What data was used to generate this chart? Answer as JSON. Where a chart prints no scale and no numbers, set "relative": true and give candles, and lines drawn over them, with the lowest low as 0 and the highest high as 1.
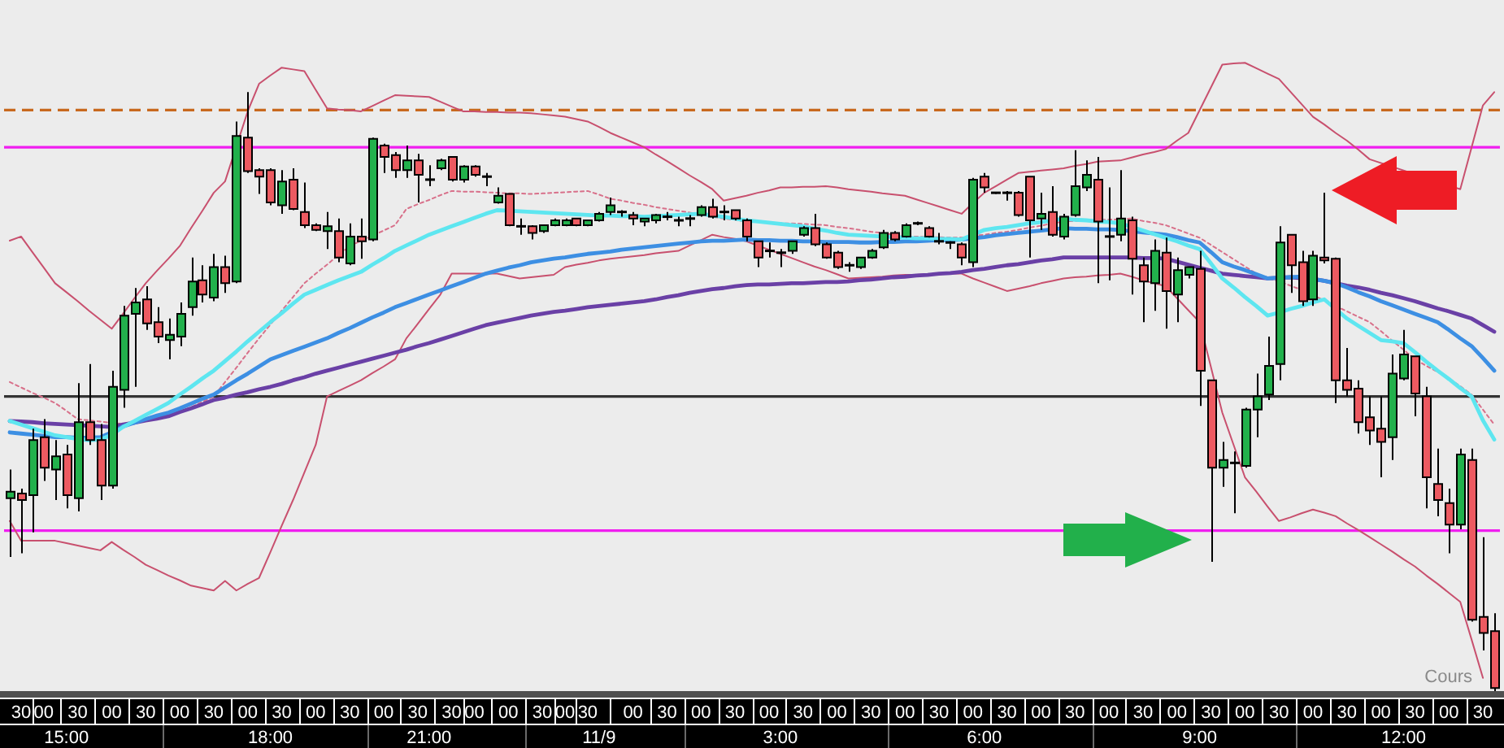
{
  "chart_data": {
    "type": "candlestick",
    "relative": true,
    "marker": "none",
    "categories": [
      null,
      "30",
      null,
      "00",
      null,
      "15:00",
      "30",
      null,
      null,
      "00",
      null,
      null,
      "30",
      null,
      null,
      "00",
      null,
      null,
      "30",
      null,
      null,
      "00",
      null,
      "18:00",
      "30",
      null,
      null,
      "00",
      null,
      null,
      "30",
      null,
      null,
      "00",
      null,
      null,
      "30",
      "21:00",
      null,
      "30",
      null,
      "00",
      null,
      null,
      "00",
      null,
      null,
      "30",
      null,
      "00",
      null,
      "30",
      "11/9",
      null,
      null,
      "00",
      null,
      null,
      "30",
      null,
      null,
      "00",
      null,
      null,
      "30",
      null,
      null,
      "00",
      "3:00",
      null,
      "30",
      null,
      null,
      "00",
      null,
      null,
      "30",
      null,
      null,
      "00",
      null,
      null,
      "30",
      null,
      null,
      "00",
      "6:00",
      null,
      "30",
      null,
      null,
      "00",
      null,
      null,
      "30",
      null,
      null,
      "00",
      null,
      null,
      "30",
      null,
      null,
      "00",
      null,
      "9:00",
      "30",
      null,
      null,
      "00",
      null,
      null,
      "30",
      null,
      null,
      "00",
      null,
      null,
      "30",
      null,
      null,
      "00",
      null,
      "12:00",
      "30",
      null,
      null,
      "00",
      null,
      null,
      "30",
      null
    ],
    "ohlc": [
      [
        0.322,
        0.37,
        0.224,
        0.333
      ],
      [
        0.33,
        0.338,
        0.23,
        0.319
      ],
      [
        0.327,
        0.438,
        0.265,
        0.419
      ],
      [
        0.424,
        0.454,
        0.351,
        0.373
      ],
      [
        0.37,
        0.419,
        0.319,
        0.392
      ],
      [
        0.395,
        0.411,
        0.305,
        0.327
      ],
      [
        0.322,
        0.514,
        0.3,
        0.449
      ],
      [
        0.449,
        0.546,
        0.411,
        0.419
      ],
      [
        0.419,
        0.446,
        0.319,
        0.343
      ],
      [
        0.343,
        0.535,
        0.338,
        0.508
      ],
      [
        0.503,
        0.643,
        0.473,
        0.627
      ],
      [
        0.63,
        0.673,
        0.508,
        0.649
      ],
      [
        0.654,
        0.676,
        0.603,
        0.614
      ],
      [
        0.616,
        0.641,
        0.581,
        0.592
      ],
      [
        0.586,
        0.622,
        0.554,
        0.595
      ],
      [
        0.592,
        0.649,
        0.576,
        0.63
      ],
      [
        0.641,
        0.724,
        0.627,
        0.684
      ],
      [
        0.686,
        0.711,
        0.649,
        0.662
      ],
      [
        0.657,
        0.73,
        0.651,
        0.708
      ],
      [
        0.708,
        0.727,
        0.665,
        0.681
      ],
      [
        0.684,
        0.951,
        0.681,
        0.927
      ],
      [
        0.924,
        1.0,
        0.865,
        0.868
      ],
      [
        0.87,
        0.873,
        0.83,
        0.859
      ],
      [
        0.87,
        0.873,
        0.811,
        0.816
      ],
      [
        0.811,
        0.87,
        0.797,
        0.851
      ],
      [
        0.854,
        0.873,
        0.803,
        0.805
      ],
      [
        0.8,
        0.849,
        0.773,
        0.778
      ],
      [
        0.778,
        0.781,
        0.768,
        0.77
      ],
      [
        0.768,
        0.8,
        0.738,
        0.776
      ],
      [
        0.768,
        0.789,
        0.716,
        0.724
      ],
      [
        0.714,
        0.781,
        0.711,
        0.759
      ],
      [
        0.759,
        0.789,
        0.722,
        0.751
      ],
      [
        0.754,
        0.924,
        0.751,
        0.922
      ],
      [
        0.911,
        0.914,
        0.865,
        0.892
      ],
      [
        0.895,
        0.9,
        0.857,
        0.87
      ],
      [
        0.87,
        0.911,
        0.857,
        0.886
      ],
      [
        0.886,
        0.897,
        0.816,
        0.862
      ],
      [
        0.854,
        0.878,
        0.843,
        0.854
      ],
      [
        0.873,
        0.889,
        0.87,
        0.886
      ],
      [
        0.892,
        0.892,
        0.851,
        0.854
      ],
      [
        0.854,
        0.878,
        0.849,
        0.876
      ],
      [
        0.876,
        0.878,
        0.859,
        0.862
      ],
      [
        0.859,
        0.865,
        0.843,
        0.859
      ],
      [
        0.816,
        0.841,
        0.814,
        0.827
      ],
      [
        0.83,
        0.83,
        0.776,
        0.778
      ],
      [
        0.776,
        0.789,
        0.762,
        0.776
      ],
      [
        0.776,
        0.778,
        0.754,
        0.765
      ],
      [
        0.768,
        0.778,
        0.765,
        0.778
      ],
      [
        0.778,
        0.789,
        0.776,
        0.786
      ],
      [
        0.778,
        0.789,
        0.776,
        0.786
      ],
      [
        0.789,
        0.789,
        0.776,
        0.778
      ],
      [
        0.778,
        0.786,
        0.776,
        0.786
      ],
      [
        0.786,
        0.8,
        0.784,
        0.797
      ],
      [
        0.8,
        0.824,
        0.795,
        0.811
      ],
      [
        0.8,
        0.803,
        0.792,
        0.8
      ],
      [
        0.795,
        0.8,
        0.778,
        0.789
      ],
      [
        0.784,
        0.789,
        0.776,
        0.789
      ],
      [
        0.786,
        0.797,
        0.781,
        0.795
      ],
      [
        0.792,
        0.8,
        0.786,
        0.792
      ],
      [
        0.786,
        0.792,
        0.776,
        0.786
      ],
      [
        0.789,
        0.795,
        0.776,
        0.789
      ],
      [
        0.795,
        0.811,
        0.792,
        0.808
      ],
      [
        0.808,
        0.822,
        0.789,
        0.792
      ],
      [
        0.8,
        0.811,
        0.786,
        0.8
      ],
      [
        0.803,
        0.803,
        0.786,
        0.789
      ],
      [
        0.786,
        0.789,
        0.751,
        0.759
      ],
      [
        0.751,
        0.751,
        0.708,
        0.724
      ],
      [
        0.735,
        0.749,
        0.724,
        0.735
      ],
      [
        0.732,
        0.738,
        0.708,
        0.732
      ],
      [
        0.735,
        0.751,
        0.73,
        0.751
      ],
      [
        0.762,
        0.776,
        0.759,
        0.773
      ],
      [
        0.773,
        0.797,
        0.743,
        0.746
      ],
      [
        0.746,
        0.749,
        0.722,
        0.724
      ],
      [
        0.732,
        0.735,
        0.705,
        0.708
      ],
      [
        0.711,
        0.716,
        0.7,
        0.711
      ],
      [
        0.708,
        0.724,
        0.705,
        0.724
      ],
      [
        0.724,
        0.738,
        0.722,
        0.735
      ],
      [
        0.741,
        0.77,
        0.738,
        0.765
      ],
      [
        0.765,
        0.768,
        0.751,
        0.754
      ],
      [
        0.759,
        0.781,
        0.757,
        0.778
      ],
      [
        0.781,
        0.784,
        0.778,
        0.781
      ],
      [
        0.773,
        0.776,
        0.757,
        0.759
      ],
      [
        0.751,
        0.765,
        0.746,
        0.751
      ],
      [
        0.749,
        0.751,
        0.738,
        0.749
      ],
      [
        0.746,
        0.749,
        0.711,
        0.724
      ],
      [
        0.716,
        0.857,
        0.708,
        0.854
      ],
      [
        0.859,
        0.865,
        0.832,
        0.841
      ],
      [
        0.832,
        0.832,
        0.83,
        0.832
      ],
      [
        0.832,
        0.835,
        0.819,
        0.832
      ],
      [
        0.832,
        0.835,
        0.792,
        0.795
      ],
      [
        0.859,
        0.859,
        0.724,
        0.786
      ],
      [
        0.789,
        0.832,
        0.77,
        0.797
      ],
      [
        0.8,
        0.843,
        0.759,
        0.762
      ],
      [
        0.759,
        0.797,
        0.754,
        0.792
      ],
      [
        0.795,
        0.903,
        0.792,
        0.843
      ],
      [
        0.841,
        0.886,
        0.835,
        0.862
      ],
      [
        0.854,
        0.892,
        0.681,
        0.784
      ],
      [
        0.759,
        0.841,
        0.686,
        0.759
      ],
      [
        0.762,
        0.87,
        0.751,
        0.789
      ],
      [
        0.786,
        0.792,
        0.662,
        0.722
      ],
      [
        0.711,
        0.724,
        0.616,
        0.684
      ],
      [
        0.681,
        0.754,
        0.635,
        0.735
      ],
      [
        0.732,
        0.757,
        0.605,
        0.668
      ],
      [
        0.662,
        0.724,
        0.616,
        0.703
      ],
      [
        0.695,
        0.708,
        0.689,
        0.708
      ],
      [
        0.705,
        0.735,
        0.476,
        0.535
      ],
      [
        0.519,
        0.519,
        0.216,
        0.373
      ],
      [
        0.373,
        0.416,
        0.341,
        0.386
      ],
      [
        0.381,
        0.4,
        0.297,
        0.381
      ],
      [
        0.376,
        0.473,
        0.373,
        0.47
      ],
      [
        0.47,
        0.53,
        0.424,
        0.492
      ],
      [
        0.495,
        0.592,
        0.486,
        0.543
      ],
      [
        0.546,
        0.776,
        0.519,
        0.749
      ],
      [
        0.762,
        0.762,
        0.665,
        0.711
      ],
      [
        0.716,
        0.735,
        0.643,
        0.651
      ],
      [
        0.654,
        0.735,
        0.643,
        0.727
      ],
      [
        0.724,
        0.832,
        0.714,
        0.719
      ],
      [
        0.722,
        0.724,
        0.481,
        0.519
      ],
      [
        0.519,
        0.573,
        0.492,
        0.503
      ],
      [
        0.505,
        0.519,
        0.43,
        0.449
      ],
      [
        0.457,
        0.492,
        0.411,
        0.435
      ],
      [
        0.438,
        0.492,
        0.357,
        0.416
      ],
      [
        0.424,
        0.562,
        0.386,
        0.53
      ],
      [
        0.522,
        0.603,
        0.519,
        0.562
      ],
      [
        0.559,
        0.559,
        0.459,
        0.497
      ],
      [
        0.492,
        0.508,
        0.305,
        0.357
      ],
      [
        0.346,
        0.405,
        0.292,
        0.319
      ],
      [
        0.314,
        0.338,
        0.23,
        0.278
      ],
      [
        0.278,
        0.405,
        0.27,
        0.395
      ],
      [
        0.386,
        0.405,
        0.116,
        0.119
      ],
      [
        0.124,
        0.257,
        0.068,
        0.097
      ],
      [
        0.1,
        0.13,
        0,
        0.005
      ]
    ],
    "colors": [
      "#22b14c",
      "#ed5a61",
      "#22b14c",
      "#ed5a61",
      "#22b14c",
      "#ed5a61",
      "#22b14c",
      "#ed5a61",
      "#ed5a61",
      "#22b14c",
      "#22b14c",
      "#22b14c",
      "#ed5a61",
      "#ed5a61",
      "#22b14c",
      "#22b14c",
      "#22b14c",
      "#ed5a61",
      "#22b14c",
      "#ed5a61",
      "#22b14c",
      "#ed5a61",
      "#ed5a61",
      "#ed5a61",
      "#22b14c",
      "#ed5a61",
      "#ed5a61",
      "#ed5a61",
      "#22b14c",
      "#ed5a61",
      "#22b14c",
      "#ed5a61",
      "#22b14c",
      "#ed5a61",
      "#ed5a61",
      "#22b14c",
      "#ed5a61",
      "#000000",
      "#22b14c",
      "#ed5a61",
      "#22b14c",
      "#ed5a61",
      "#000000",
      "#22b14c",
      "#ed5a61",
      "#000000",
      "#ed5a61",
      "#22b14c",
      "#22b14c",
      "#22b14c",
      "#ed5a61",
      "#22b14c",
      "#22b14c",
      "#22b14c",
      "#000000",
      "#ed5a61",
      "#22b14c",
      "#22b14c",
      "#000000",
      "#000000",
      "#000000",
      "#22b14c",
      "#ed5a61",
      "#000000",
      "#ed5a61",
      "#ed5a61",
      "#ed5a61",
      "#000000",
      "#000000",
      "#22b14c",
      "#22b14c",
      "#ed5a61",
      "#ed5a61",
      "#ed5a61",
      "#000000",
      "#22b14c",
      "#22b14c",
      "#22b14c",
      "#ed5a61",
      "#22b14c",
      "#000000",
      "#ed5a61",
      "#000000",
      "#000000",
      "#ed5a61",
      "#22b14c",
      "#ed5a61",
      "#000000",
      "#000000",
      "#ed5a61",
      "#ed5a61",
      "#22b14c",
      "#ed5a61",
      "#22b14c",
      "#22b14c",
      "#22b14c",
      "#ed5a61",
      "#000000",
      "#22b14c",
      "#ed5a61",
      "#ed5a61",
      "#22b14c",
      "#ed5a61",
      "#22b14c",
      "#22b14c",
      "#ed5a61",
      "#ed5a61",
      "#22b14c",
      "#000000",
      "#22b14c",
      "#22b14c",
      "#22b14c",
      "#22b14c",
      "#ed5a61",
      "#ed5a61",
      "#22b14c",
      "#ed5a61",
      "#ed5a61",
      "#ed5a61",
      "#ed5a61",
      "#ed5a61",
      "#ed5a61",
      "#22b14c",
      "#22b14c",
      "#ed5a61",
      "#ed5a61",
      "#ed5a61",
      "#ed5a61",
      "#22b14c",
      "#ed5a61",
      "#ed5a61",
      "#ed5a61"
    ],
    "series": [
      {
        "type": "line",
        "color": "#5ee6f0",
        "values": [
          0.451,
          0.445,
          0.439,
          0.433,
          0.427,
          0.424,
          0.421,
          0.419,
          0.42,
          0.428,
          0.441,
          0.451,
          0.461,
          0.471,
          0.481,
          0.495,
          0.508,
          0.522,
          0.535,
          0.551,
          0.567,
          0.584,
          0.6,
          0.616,
          0.631,
          0.647,
          0.662,
          0.67,
          0.678,
          0.686,
          0.693,
          0.7,
          0.712,
          0.723,
          0.735,
          0.744,
          0.753,
          0.762,
          0.769,
          0.776,
          0.783,
          0.79,
          0.797,
          0.803,
          0.802,
          0.801,
          0.8,
          0.799,
          0.798,
          0.797,
          0.796,
          0.795,
          0.794,
          0.794,
          0.793,
          0.793,
          0.792,
          0.793,
          0.794,
          0.795,
          0.796,
          0.797,
          0.794,
          0.792,
          0.789,
          0.786,
          0.784,
          0.782,
          0.78,
          0.778,
          0.776,
          0.772,
          0.769,
          0.765,
          0.762,
          0.761,
          0.76,
          0.759,
          0.758,
          0.757,
          0.756,
          0.756,
          0.755,
          0.755,
          0.754,
          0.762,
          0.77,
          0.773,
          0.775,
          0.778,
          0.781,
          0.783,
          0.786,
          0.789,
          0.787,
          0.786,
          0.784,
          0.783,
          0.781,
          0.775,
          0.769,
          0.763,
          0.757,
          0.751,
          0.744,
          0.738,
          0.714,
          0.689,
          0.674,
          0.658,
          0.643,
          0.627,
          0.632,
          0.638,
          0.643,
          0.649,
          0.654,
          0.638,
          0.622,
          0.61,
          0.598,
          0.586,
          0.584,
          0.581,
          0.566,
          0.55,
          0.535,
          0.521,
          0.506,
          0.492,
          0.452,
          0.42
        ]
      },
      {
        "type": "line",
        "color": "#3d8fe3",
        "values": [
          0.432,
          0.43,
          0.428,
          0.426,
          0.424,
          0.424,
          0.423,
          0.423,
          0.424,
          0.432,
          0.442,
          0.448,
          0.454,
          0.46,
          0.465,
          0.472,
          0.48,
          0.488,
          0.495,
          0.507,
          0.519,
          0.53,
          0.542,
          0.554,
          0.561,
          0.568,
          0.575,
          0.582,
          0.589,
          0.598,
          0.606,
          0.615,
          0.624,
          0.632,
          0.641,
          0.648,
          0.655,
          0.662,
          0.669,
          0.676,
          0.683,
          0.69,
          0.697,
          0.702,
          0.707,
          0.711,
          0.716,
          0.719,
          0.722,
          0.724,
          0.727,
          0.73,
          0.732,
          0.734,
          0.737,
          0.739,
          0.741,
          0.743,
          0.745,
          0.747,
          0.749,
          0.751,
          0.752,
          0.752,
          0.753,
          0.754,
          0.753,
          0.753,
          0.752,
          0.752,
          0.751,
          0.751,
          0.75,
          0.75,
          0.75,
          0.749,
          0.749,
          0.75,
          0.75,
          0.751,
          0.751,
          0.752,
          0.753,
          0.753,
          0.754,
          0.756,
          0.758,
          0.761,
          0.763,
          0.765,
          0.767,
          0.769,
          0.771,
          0.773,
          0.772,
          0.772,
          0.771,
          0.771,
          0.77,
          0.768,
          0.766,
          0.764,
          0.762,
          0.758,
          0.753,
          0.749,
          0.733,
          0.716,
          0.709,
          0.703,
          0.696,
          0.689,
          0.69,
          0.691,
          0.692,
          0.688,
          0.685,
          0.681,
          0.674,
          0.666,
          0.659,
          0.651,
          0.644,
          0.637,
          0.63,
          0.623,
          0.616,
          0.603,
          0.589,
          0.576,
          0.556,
          0.535
        ]
      },
      {
        "type": "line",
        "color": "#6a40a6",
        "values": [
          0.451,
          0.45,
          0.449,
          0.447,
          0.446,
          0.445,
          0.444,
          0.443,
          0.442,
          0.441,
          0.445,
          0.448,
          0.452,
          0.455,
          0.459,
          0.466,
          0.472,
          0.479,
          0.486,
          0.49,
          0.495,
          0.499,
          0.504,
          0.508,
          0.513,
          0.519,
          0.524,
          0.53,
          0.535,
          0.54,
          0.545,
          0.55,
          0.555,
          0.56,
          0.565,
          0.57,
          0.576,
          0.581,
          0.587,
          0.593,
          0.599,
          0.605,
          0.611,
          0.615,
          0.619,
          0.623,
          0.627,
          0.63,
          0.633,
          0.635,
          0.638,
          0.641,
          0.643,
          0.645,
          0.647,
          0.649,
          0.651,
          0.654,
          0.658,
          0.661,
          0.665,
          0.668,
          0.671,
          0.673,
          0.676,
          0.678,
          0.679,
          0.679,
          0.68,
          0.681,
          0.681,
          0.682,
          0.683,
          0.683,
          0.684,
          0.686,
          0.687,
          0.689,
          0.691,
          0.692,
          0.694,
          0.695,
          0.697,
          0.698,
          0.7,
          0.703,
          0.705,
          0.708,
          0.711,
          0.713,
          0.716,
          0.719,
          0.721,
          0.724,
          0.724,
          0.724,
          0.724,
          0.724,
          0.724,
          0.724,
          0.723,
          0.723,
          0.722,
          0.717,
          0.712,
          0.707,
          0.702,
          0.697,
          0.695,
          0.693,
          0.691,
          0.689,
          0.69,
          0.691,
          null,
          0.688,
          0.685,
          0.681,
          0.677,
          0.674,
          0.67,
          0.665,
          0.661,
          0.656,
          0.651,
          0.645,
          0.639,
          0.634,
          0.628,
          0.622,
          0.611,
          0.6
        ]
      },
      {
        "type": "line",
        "color": "#c8506e",
        "values": [
          0.752,
          0.759,
          0.733,
          0.707,
          0.681,
          0.666,
          0.651,
          0.635,
          0.62,
          0.605,
          0.63,
          0.656,
          0.681,
          0.702,
          0.722,
          0.743,
          0.773,
          0.802,
          0.832,
          0.851,
          null,
          0.968,
          1.014,
          1.028,
          1.041,
          1.038,
          1.035,
          1.004,
          0.973,
          0.971,
          0.97,
          0.968,
          0.977,
          0.986,
          0.995,
          0.994,
          0.993,
          0.992,
          0.984,
          0.976,
          0.968,
          0.968,
          0.967,
          0.967,
          0.966,
          0.966,
          0.965,
          0.963,
          0.961,
          0.959,
          0.955,
          0.951,
          0.942,
          0.932,
          0.924,
          0.916,
          0.908,
          0.896,
          0.885,
          0.873,
          0.861,
          0.85,
          0.838,
          0.819,
          0.823,
          0.827,
          0.832,
          0.836,
          0.841,
          0.841,
          0.842,
          0.842,
          0.843,
          0.841,
          0.838,
          0.836,
          0.834,
          0.831,
          0.829,
          0.827,
          0.821,
          0.815,
          0.809,
          0.803,
          0.797,
          0.815,
          0.832,
          0.843,
          0.854,
          0.865,
          0.867,
          0.869,
          0.871,
          0.873,
          0.877,
          0.88,
          0.884,
          0.885,
          0.886,
          0.891,
          0.896,
          0.9,
          0.905,
          0.919,
          0.932,
          0.97,
          1.008,
          1.046,
          1.048,
          1.049,
          1.04,
          1.031,
          1.022,
          1.001,
          0.98,
          0.959,
          0.946,
          0.932,
          0.919,
          0.904,
          0.888,
          null,
          null,
          null,
          null,
          null,
          null,
          null,
          0.838,
          0.908,
          0.978,
          1.0
        ]
      },
      {
        "type": "line",
        "color": "#c8506e",
        "values": [
          0.284,
          0.251,
          0.251,
          0.251,
          0.251,
          0.247,
          0.243,
          0.239,
          0.235,
          0.249,
          0.236,
          0.224,
          0.211,
          0.202,
          0.193,
          0.185,
          0.176,
          0.172,
          0.168,
          0.184,
          0.168,
          0.179,
          0.189,
          0.232,
          0.276,
          0.319,
          0.365,
          0.411,
          0.492,
          0.501,
          0.51,
          0.519,
          0.531,
          0.542,
          0.554,
          0.589,
          0.613,
          0.638,
          0.662,
          0.697,
          0.697,
          0.697,
          0.697,
          0.697,
          0.693,
          0.689,
          0.691,
          0.693,
          0.695,
          0.708,
          0.712,
          0.715,
          0.719,
          0.722,
          0.724,
          0.726,
          0.728,
          0.731,
          0.733,
          0.735,
          0.744,
          0.753,
          0.762,
          0.758,
          0.755,
          0.751,
          0.744,
          0.737,
          0.73,
          0.723,
          0.716,
          0.709,
          0.703,
          0.696,
          0.689,
          0.69,
          0.691,
          0.692,
          0.694,
          0.695,
          0.695,
          0.696,
          0.696,
          0.697,
          0.697,
          0.689,
          0.682,
          0.675,
          0.668,
          0.672,
          0.676,
          0.681,
          0.685,
          0.689,
          0.691,
          0.692,
          0.694,
          0.695,
          0.697,
          0.692,
          0.686,
          0.681,
          0.676,
          0.656,
          0.636,
          0.616,
          0.541,
          0.465,
          0.411,
          0.357,
          0.333,
          0.308,
          0.284,
          0.29,
          0.297,
          0.303,
          0.298,
          0.292,
          0.28,
          0.269,
          0.257,
          0.245,
          0.233,
          0.22,
          0.208,
          0.193,
          0.179,
          0.164,
          0.149,
          0.086,
          0.022,
          null
        ]
      },
      {
        "type": "line",
        "color": "#d8708a",
        "line_style": "dotted",
        "values": [
          0.516,
          0.507,
          0.498,
          0.49,
          0.481,
          0.468,
          0.454,
          0.452,
          0.45,
          0.448,
          0.446,
          0.45,
          0.454,
          0.457,
          0.461,
          0.465,
          0.474,
          0.483,
          0.492,
          0.516,
          0.54,
          0.565,
          0.589,
          0.612,
          0.635,
          0.658,
          0.681,
          0.697,
          0.712,
          0.728,
          0.743,
          0.752,
          0.76,
          0.769,
          0.778,
          0.805,
          0.813,
          0.82,
          0.828,
          0.835,
          0.834,
          0.834,
          0.833,
          0.832,
          0.831,
          0.831,
          0.83,
          0.831,
          0.832,
          0.833,
          0.834,
          0.835,
          0.829,
          0.822,
          0.819,
          0.815,
          0.812,
          0.808,
          0.805,
          0.802,
          0.799,
          0.795,
          0.792,
          0.789,
          0.787,
          0.784,
          0.783,
          0.782,
          0.781,
          0.781,
          0.78,
          0.779,
          0.778,
          0.775,
          0.773,
          0.77,
          0.767,
          0.765,
          0.762,
          0.759,
          0.759,
          0.758,
          0.758,
          0.757,
          0.757,
          0.76,
          0.762,
          0.765,
          0.767,
          0.77,
          0.774,
          0.777,
          0.781,
          0.784,
          0.785,
          0.786,
          0.787,
          0.787,
          0.788,
          0.789,
          0.785,
          0.782,
          0.778,
          0.771,
          0.764,
          0.757,
          0.745,
          0.733,
          0.721,
          0.709,
          0.697,
          0.69,
          0.684,
          0.677,
          0.67,
          0.661,
          0.652,
          0.643,
          0.634,
          0.625,
          0.616,
          0.601,
          0.585,
          0.57,
          0.554,
          0.543,
          0.533,
          0.522,
          0.509,
          0.495,
          0.47,
          0.445
        ]
      }
    ],
    "ref_lines": [
      {
        "axis": "y",
        "value": 0.97,
        "color": "#c8691e",
        "line_style": "dashed"
      },
      {
        "axis": "y",
        "value": 0.908,
        "color": "#f01ef0"
      },
      {
        "axis": "y",
        "value": 0.268,
        "color": "#f01ef0"
      },
      {
        "axis": "y",
        "value": 0.492,
        "color": "#333333"
      }
    ],
    "annotations": [
      "Cours"
    ]
  }
}
